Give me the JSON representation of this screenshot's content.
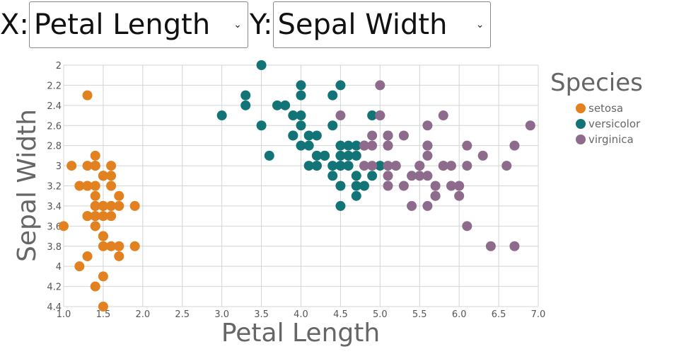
{
  "controls": {
    "x_label": "X:",
    "x_value": "Petal Length",
    "y_label": "Y:",
    "y_value": "Sepal Width"
  },
  "colors": {
    "setosa": "#e1811f",
    "versicolor": "#137477",
    "virginica": "#8e6b8c",
    "grid": "#d4d4d4"
  },
  "chart_data": {
    "type": "scatter",
    "xlabel": "Petal Length",
    "ylabel": "Sepal Width",
    "xlim": [
      1.0,
      7.0
    ],
    "ylim": [
      2.0,
      4.4
    ],
    "y_inverted": true,
    "xticks": [
      "1.0",
      "1.5",
      "2.0",
      "2.5",
      "3.0",
      "3.5",
      "4.0",
      "4.5",
      "5.0",
      "5.5",
      "6.0",
      "6.5",
      "7.0"
    ],
    "yticks": [
      "2",
      "2.2",
      "2.4",
      "2.6",
      "2.8",
      "3",
      "3.2",
      "3.4",
      "3.6",
      "3.8",
      "4",
      "4.2",
      "4.4"
    ],
    "grid": true,
    "legend": {
      "title": "Species",
      "position": "right"
    },
    "series": [
      {
        "name": "setosa",
        "points": [
          [
            1.4,
            3.5
          ],
          [
            1.4,
            3.0
          ],
          [
            1.3,
            3.2
          ],
          [
            1.5,
            3.1
          ],
          [
            1.4,
            3.6
          ],
          [
            1.7,
            3.9
          ],
          [
            1.4,
            3.4
          ],
          [
            1.5,
            3.4
          ],
          [
            1.4,
            2.9
          ],
          [
            1.5,
            3.1
          ],
          [
            1.5,
            3.7
          ],
          [
            1.6,
            3.4
          ],
          [
            1.4,
            3.0
          ],
          [
            1.1,
            3.0
          ],
          [
            1.2,
            4.0
          ],
          [
            1.5,
            4.4
          ],
          [
            1.3,
            3.9
          ],
          [
            1.4,
            3.5
          ],
          [
            1.7,
            3.8
          ],
          [
            1.5,
            3.8
          ],
          [
            1.7,
            3.4
          ],
          [
            1.5,
            3.7
          ],
          [
            1.0,
            3.6
          ],
          [
            1.7,
            3.3
          ],
          [
            1.9,
            3.4
          ],
          [
            1.6,
            3.0
          ],
          [
            1.6,
            3.4
          ],
          [
            1.5,
            3.5
          ],
          [
            1.4,
            3.4
          ],
          [
            1.6,
            3.2
          ],
          [
            1.6,
            3.1
          ],
          [
            1.5,
            3.4
          ],
          [
            1.5,
            4.1
          ],
          [
            1.4,
            4.2
          ],
          [
            1.5,
            3.1
          ],
          [
            1.2,
            3.2
          ],
          [
            1.3,
            3.5
          ],
          [
            1.4,
            3.6
          ],
          [
            1.3,
            3.0
          ],
          [
            1.5,
            3.4
          ],
          [
            1.3,
            3.5
          ],
          [
            1.3,
            2.3
          ],
          [
            1.3,
            3.2
          ],
          [
            1.6,
            3.5
          ],
          [
            1.9,
            3.8
          ],
          [
            1.4,
            3.0
          ],
          [
            1.6,
            3.8
          ],
          [
            1.4,
            3.2
          ],
          [
            1.5,
            3.7
          ],
          [
            1.4,
            3.3
          ]
        ]
      },
      {
        "name": "versicolor",
        "points": [
          [
            4.7,
            3.2
          ],
          [
            4.5,
            3.2
          ],
          [
            4.9,
            3.1
          ],
          [
            4.0,
            2.3
          ],
          [
            4.6,
            2.8
          ],
          [
            4.5,
            2.8
          ],
          [
            4.7,
            3.3
          ],
          [
            3.3,
            2.4
          ],
          [
            4.6,
            2.9
          ],
          [
            3.9,
            2.7
          ],
          [
            3.5,
            2.0
          ],
          [
            4.2,
            3.0
          ],
          [
            4.0,
            2.2
          ],
          [
            4.7,
            2.9
          ],
          [
            3.6,
            2.9
          ],
          [
            4.4,
            3.1
          ],
          [
            4.5,
            3.0
          ],
          [
            4.1,
            2.7
          ],
          [
            4.5,
            2.2
          ],
          [
            3.9,
            2.5
          ],
          [
            4.8,
            3.2
          ],
          [
            4.0,
            2.8
          ],
          [
            4.9,
            2.5
          ],
          [
            4.7,
            2.8
          ],
          [
            4.3,
            2.9
          ],
          [
            4.4,
            3.0
          ],
          [
            4.8,
            2.8
          ],
          [
            5.0,
            3.0
          ],
          [
            4.5,
            2.9
          ],
          [
            3.5,
            2.6
          ],
          [
            3.8,
            2.4
          ],
          [
            3.7,
            2.4
          ],
          [
            3.9,
            2.7
          ],
          [
            5.1,
            2.7
          ],
          [
            4.5,
            3.0
          ],
          [
            4.5,
            3.4
          ],
          [
            4.7,
            3.1
          ],
          [
            4.4,
            2.3
          ],
          [
            4.1,
            3.0
          ],
          [
            4.0,
            2.5
          ],
          [
            4.4,
            2.6
          ],
          [
            4.6,
            3.0
          ],
          [
            4.0,
            2.6
          ],
          [
            3.3,
            2.3
          ],
          [
            4.2,
            2.7
          ],
          [
            4.2,
            3.0
          ],
          [
            4.2,
            2.9
          ],
          [
            4.3,
            2.9
          ],
          [
            3.0,
            2.5
          ],
          [
            4.1,
            2.8
          ]
        ]
      },
      {
        "name": "virginica",
        "points": [
          [
            6.0,
            3.3
          ],
          [
            5.1,
            2.7
          ],
          [
            5.9,
            3.0
          ],
          [
            5.6,
            2.9
          ],
          [
            5.8,
            3.0
          ],
          [
            6.6,
            3.0
          ],
          [
            4.5,
            2.5
          ],
          [
            6.3,
            2.9
          ],
          [
            5.8,
            2.5
          ],
          [
            6.1,
            3.6
          ],
          [
            5.1,
            3.2
          ],
          [
            5.3,
            2.7
          ],
          [
            5.5,
            3.0
          ],
          [
            5.0,
            2.5
          ],
          [
            5.1,
            2.8
          ],
          [
            5.3,
            3.2
          ],
          [
            5.5,
            3.0
          ],
          [
            6.7,
            3.8
          ],
          [
            6.9,
            2.6
          ],
          [
            5.0,
            2.2
          ],
          [
            5.7,
            3.2
          ],
          [
            4.9,
            2.8
          ],
          [
            6.7,
            2.8
          ],
          [
            4.9,
            2.7
          ],
          [
            5.7,
            3.3
          ],
          [
            6.0,
            3.2
          ],
          [
            4.8,
            2.8
          ],
          [
            4.9,
            3.0
          ],
          [
            5.6,
            2.8
          ],
          [
            5.8,
            3.0
          ],
          [
            6.1,
            2.8
          ],
          [
            6.4,
            3.8
          ],
          [
            5.6,
            2.8
          ],
          [
            5.1,
            2.8
          ],
          [
            5.6,
            2.6
          ],
          [
            6.1,
            3.0
          ],
          [
            5.6,
            3.4
          ],
          [
            5.5,
            3.1
          ],
          [
            4.8,
            3.0
          ],
          [
            5.4,
            3.1
          ],
          [
            5.6,
            3.1
          ],
          [
            5.1,
            3.1
          ],
          [
            5.1,
            2.7
          ],
          [
            5.9,
            3.2
          ],
          [
            5.7,
            3.3
          ],
          [
            5.2,
            3.0
          ],
          [
            5.0,
            2.5
          ],
          [
            5.2,
            3.0
          ],
          [
            5.4,
            3.4
          ],
          [
            5.1,
            3.0
          ]
        ]
      }
    ]
  }
}
